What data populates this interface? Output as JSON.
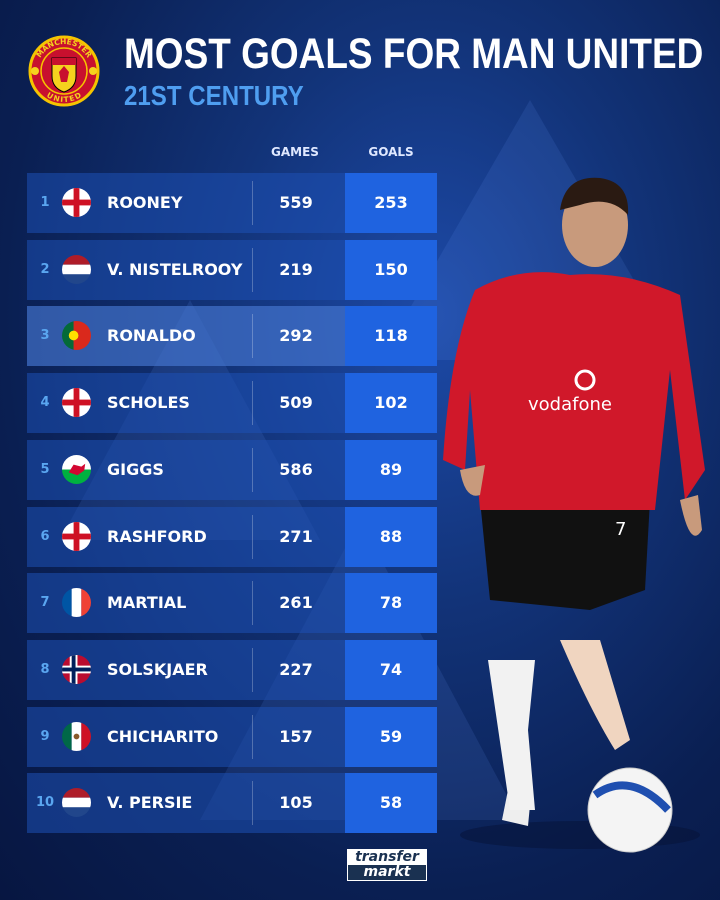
{
  "header": {
    "title": "MOST GOALS FOR MAN UNITED",
    "subtitle": "21ST CENTURY",
    "crest_text_top": "MANCHESTER",
    "crest_text_bottom": "UNITED"
  },
  "columns": {
    "games": "GAMES",
    "goals": "GOALS"
  },
  "colors": {
    "accent": "#4f9ef0",
    "goals_cell": "#1f63e0",
    "row": "#1e50b4",
    "background": "#0b1d4a"
  },
  "rows": [
    {
      "rank": "1",
      "name": "ROONEY",
      "flag": "england",
      "games": "559",
      "goals": "253"
    },
    {
      "rank": "2",
      "name": "V. NISTELROOY",
      "flag": "netherlands",
      "games": "219",
      "goals": "150"
    },
    {
      "rank": "3",
      "name": "RONALDO",
      "flag": "portugal",
      "games": "292",
      "goals": "118",
      "highlighted": true
    },
    {
      "rank": "4",
      "name": "SCHOLES",
      "flag": "england",
      "games": "509",
      "goals": "102"
    },
    {
      "rank": "5",
      "name": "GIGGS",
      "flag": "wales",
      "games": "586",
      "goals": "89"
    },
    {
      "rank": "6",
      "name": "RASHFORD",
      "flag": "england",
      "games": "271",
      "goals": "88"
    },
    {
      "rank": "7",
      "name": "MARTIAL",
      "flag": "france",
      "games": "261",
      "goals": "78"
    },
    {
      "rank": "8",
      "name": "SOLSKJAER",
      "flag": "norway",
      "games": "227",
      "goals": "74"
    },
    {
      "rank": "9",
      "name": "CHICHARITO",
      "flag": "mexico",
      "games": "157",
      "goals": "59"
    },
    {
      "rank": "10",
      "name": "V. PERSIE",
      "flag": "netherlands",
      "games": "105",
      "goals": "58"
    }
  ],
  "player": {
    "shirt_sponsor": "vodafone",
    "shirt_number": "7"
  },
  "logo": {
    "line1": "transfer",
    "line2": "markt"
  }
}
